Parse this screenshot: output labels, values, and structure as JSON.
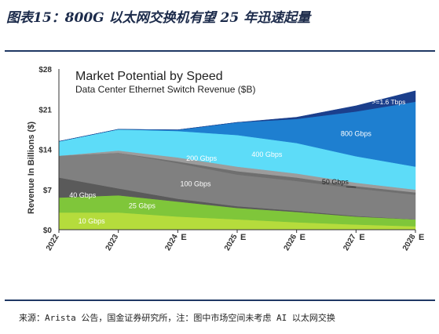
{
  "figure": {
    "title": "图表15：800G 以太网交换机有望 25 年迅速起量",
    "source": "来源：Arista 公告，国金证券研究所，注：图中市场空间未考虑 AI 以太网交换"
  },
  "chart_data": {
    "type": "area",
    "stacked": true,
    "title": "Market Potential by Speed",
    "subtitle": "Data Center Ethernet Switch Revenue ($B)",
    "xlabel": "",
    "ylabel": "Revenue In Billions ($)",
    "categories": [
      "2022",
      "2023",
      "2024 E",
      "2025 E",
      "2026 E",
      "2027 E",
      "2028 E"
    ],
    "x_labels": [
      {
        "main": "2022",
        "suffix": ""
      },
      {
        "main": "2023",
        "suffix": ""
      },
      {
        "main": "2024",
        "suffix": "E"
      },
      {
        "main": "2025",
        "suffix": "E"
      },
      {
        "main": "2026",
        "suffix": "E"
      },
      {
        "main": "2027",
        "suffix": "E"
      },
      {
        "main": "2028",
        "suffix": "E"
      }
    ],
    "ylim": [
      0,
      28
    ],
    "yticks": [
      0,
      7,
      14,
      21,
      28
    ],
    "ytick_labels": [
      "$0",
      "$7",
      "$14",
      "$21",
      "$28"
    ],
    "grid": false,
    "series": [
      {
        "name": "10 Gbps",
        "color": "#b5dc3c",
        "values": [
          3.0,
          3.0,
          2.3,
          1.8,
          1.3,
          0.9,
          0.6
        ]
      },
      {
        "name": "25 Gbps",
        "color": "#7fc63a",
        "values": [
          2.6,
          3.0,
          2.6,
          2.0,
          1.8,
          1.4,
          1.2
        ]
      },
      {
        "name": "40 Gbps",
        "color": "#5a5a5a",
        "values": [
          3.5,
          1.2,
          0.5,
          0.3,
          0.2,
          0.1,
          0.0
        ]
      },
      {
        "name": "100 Gbps",
        "color": "#808080",
        "values": [
          3.8,
          6.2,
          6.2,
          5.5,
          5.2,
          4.8,
          4.3
        ]
      },
      {
        "name": "50 Gbps",
        "color": "#6f6f6f",
        "values": [
          0.0,
          0.0,
          0.3,
          0.6,
          0.6,
          0.4,
          0.4
        ]
      },
      {
        "name": "200 Gbps",
        "color": "#9c9c9c",
        "values": [
          0.0,
          0.4,
          0.7,
          0.8,
          0.7,
          0.6,
          0.5
        ]
      },
      {
        "name": "400 Gbps",
        "color": "#5ddcf8",
        "values": [
          2.5,
          3.7,
          4.6,
          5.5,
          5.3,
          4.6,
          4.0
        ]
      },
      {
        "name": "800 Gbps",
        "color": "#1e7fd0",
        "values": [
          0.0,
          0.0,
          0.2,
          2.2,
          4.2,
          7.8,
          11.3
        ]
      },
      {
        "name": ">=1.6 Tbps",
        "color": "#1b3f8c",
        "values": [
          0.0,
          0.0,
          0.0,
          0.0,
          0.3,
          1.0,
          1.9
        ]
      }
    ],
    "annotations": [
      {
        "text": ">=1.6 Tbps",
        "series": ">=1.6 Tbps"
      },
      {
        "text": "800 Gbps",
        "series": "800 Gbps"
      },
      {
        "text": "400 Gbps",
        "series": "400 Gbps"
      },
      {
        "text": "200 Gbps",
        "series": "200 Gbps"
      },
      {
        "text": "100 Gbps",
        "series": "100 Gbps"
      },
      {
        "text": "40 Gbps",
        "series": "40 Gbps"
      },
      {
        "text": "50 Gbps",
        "series": "50 Gbps"
      },
      {
        "text": "25 Gbps",
        "series": "25 Gbps"
      },
      {
        "text": "10 Gbps",
        "series": "10 Gbps"
      }
    ],
    "colors": {
      "axis": "#333333",
      "text": "#333333",
      "label_light": "#ffffff",
      "label_dark": "#222222"
    }
  }
}
